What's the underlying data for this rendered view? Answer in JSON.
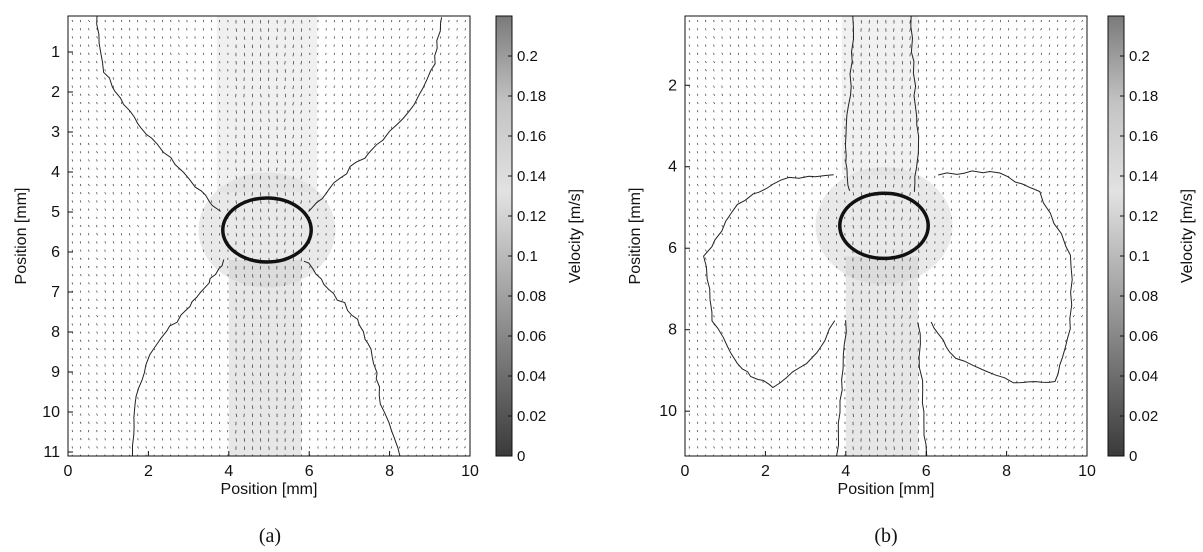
{
  "chart_data": [
    {
      "panel": "(a)",
      "type": "heatmap",
      "xlabel": "Position [mm]",
      "ylabel": "Position [mm]",
      "xlim": [
        0,
        10
      ],
      "ylim": [
        11.1,
        0.1
      ],
      "y_axis_inverted": true,
      "xticks": [
        0,
        2,
        4,
        6,
        8,
        10
      ],
      "yticks": [
        1,
        2,
        3,
        4,
        5,
        6,
        7,
        8,
        9,
        10,
        11
      ],
      "colorbar": {
        "label": "Velocity [m/s]",
        "range": [
          0,
          0.22
        ],
        "ticks": [
          "0",
          "0.02",
          "0.04",
          "0.06",
          "0.08",
          "0.1",
          "0.12",
          "0.14",
          "0.16",
          "0.18",
          "0.2"
        ],
        "colormap": "grayscale"
      },
      "vector_field": true,
      "grid": false,
      "ellipse": {
        "center": [
          4.95,
          5.45
        ],
        "rx": 1.1,
        "ry": 0.8
      },
      "jet_band": {
        "x_range": [
          4.0,
          5.8
        ],
        "y_range": [
          6.2,
          11.1
        ]
      }
    },
    {
      "panel": "(b)",
      "type": "heatmap",
      "xlabel": "Position [mm]",
      "ylabel": "Position [mm]",
      "xlim": [
        0,
        10
      ],
      "ylim": [
        11.1,
        0.3
      ],
      "y_axis_inverted": true,
      "xticks": [
        0,
        2,
        4,
        6,
        8,
        10
      ],
      "yticks": [
        2,
        4,
        6,
        8,
        10
      ],
      "colorbar": {
        "label": "Velocity [m/s]",
        "range": [
          0,
          0.22
        ],
        "ticks": [
          "0",
          "0.02",
          "0.04",
          "0.06",
          "0.08",
          "0.1",
          "0.12",
          "0.14",
          "0.16",
          "0.18",
          "0.2"
        ],
        "colormap": "grayscale"
      },
      "vector_field": true,
      "grid": false,
      "ellipse": {
        "center": [
          4.95,
          5.45
        ],
        "rx": 1.1,
        "ry": 0.8
      },
      "jet_band": {
        "x_range": [
          4.0,
          5.8
        ],
        "y_range": [
          6.2,
          11.1
        ]
      }
    }
  ]
}
